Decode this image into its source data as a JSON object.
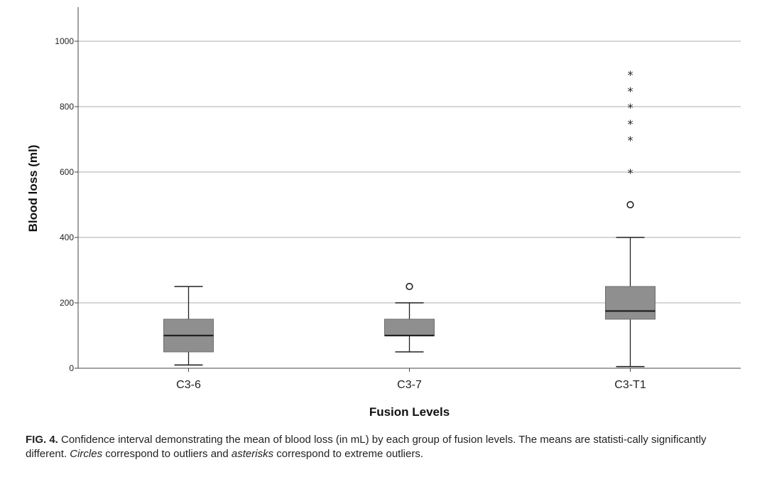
{
  "chart_data": {
    "type": "boxplot",
    "xlabel": "Fusion Levels",
    "ylabel": "Blood loss (ml)",
    "ylim": [
      0,
      1100
    ],
    "yticks": [
      0,
      200,
      400,
      600,
      800,
      1000
    ],
    "grid": "horizontal",
    "categories": [
      "C3-6",
      "C3-7",
      "C3-T1"
    ],
    "boxes": [
      {
        "category": "C3-6",
        "whisker_low": 10,
        "q1": 50,
        "median": 100,
        "q3": 150,
        "whisker_high": 250,
        "outliers": [],
        "extreme_outliers": []
      },
      {
        "category": "C3-7",
        "whisker_low": 50,
        "q1": 100,
        "median": 100,
        "q3": 150,
        "whisker_high": 200,
        "outliers": [
          250
        ],
        "extreme_outliers": []
      },
      {
        "category": "C3-T1",
        "whisker_low": 5,
        "q1": 150,
        "median": 175,
        "q3": 250,
        "whisker_high": 400,
        "outliers": [
          500
        ],
        "extreme_outliers": [
          600,
          700,
          750,
          800,
          850,
          900
        ]
      }
    ],
    "colors": {
      "box_fill": "#8f8f8f",
      "gridline": "#bdbdbd",
      "line": "#222222"
    }
  },
  "caption": {
    "lead": "FIG. 4.",
    "part1": " Confidence interval demonstrating the mean of blood loss (in mL) by each group of fusion levels. The means are statisti-cally significantly different. ",
    "italic1": "Circles",
    "part2": " correspond to outliers and ",
    "italic2": "asterisks",
    "part3": " correspond to extreme outliers."
  }
}
